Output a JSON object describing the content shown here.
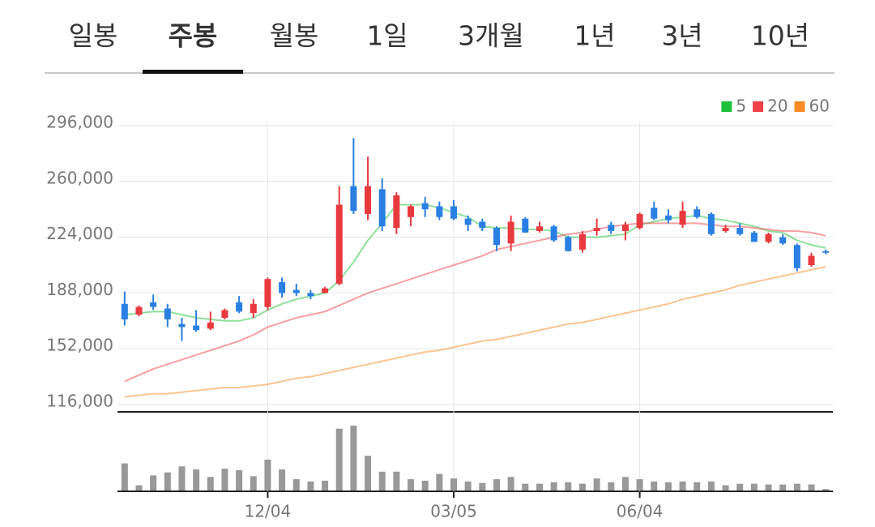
{
  "tabs": {
    "items": [
      "일봉",
      "주봉",
      "월봉",
      "1일",
      "3개월",
      "1년",
      "3년",
      "10년"
    ],
    "selected": "주봉"
  },
  "chart_data": [
    {
      "type": "candlestick",
      "categories": [
        null,
        null,
        null,
        null,
        null,
        null,
        null,
        null,
        null,
        null,
        "12/04",
        null,
        null,
        null,
        null,
        null,
        null,
        null,
        null,
        null,
        null,
        null,
        null,
        "03/05",
        null,
        null,
        null,
        null,
        null,
        null,
        null,
        null,
        null,
        null,
        null,
        null,
        "06/04",
        null,
        null,
        null,
        null,
        null,
        null,
        null,
        null,
        null,
        null,
        null,
        null,
        null
      ],
      "open": [
        181000,
        174000,
        182000,
        178000,
        168000,
        167000,
        165000,
        172000,
        182000,
        175000,
        179000,
        195000,
        190000,
        188000,
        188000,
        194000,
        257000,
        239000,
        255000,
        230000,
        237000,
        246000,
        244000,
        244000,
        236000,
        234000,
        230000,
        220000,
        236000,
        228000,
        231000,
        224000,
        216000,
        228000,
        232000,
        228000,
        230000,
        243000,
        238000,
        232000,
        242000,
        239000,
        228000,
        230000,
        227000,
        221000,
        224000,
        219000,
        206000,
        215000
      ],
      "high": [
        189000,
        180000,
        187000,
        181000,
        172000,
        177000,
        176000,
        178000,
        186000,
        184000,
        198000,
        198000,
        194000,
        190000,
        192000,
        257000,
        288000,
        276000,
        262000,
        253000,
        245000,
        250000,
        247000,
        248000,
        238000,
        236000,
        231000,
        238000,
        237000,
        234000,
        232000,
        225000,
        228000,
        236000,
        234000,
        234000,
        240000,
        247000,
        242000,
        247000,
        244000,
        240000,
        232000,
        233000,
        228000,
        227000,
        226000,
        220000,
        214000,
        216000
      ],
      "low": [
        167000,
        173000,
        177000,
        166000,
        157000,
        163000,
        164000,
        171000,
        175000,
        172000,
        177000,
        185000,
        186000,
        184000,
        188000,
        193000,
        239000,
        235000,
        228000,
        226000,
        231000,
        237000,
        235000,
        235000,
        228000,
        228000,
        215000,
        215000,
        227000,
        227000,
        221000,
        215000,
        214000,
        225000,
        226000,
        222000,
        229000,
        235000,
        233000,
        230000,
        236000,
        225000,
        227000,
        225000,
        221000,
        220000,
        219000,
        202000,
        205000,
        213000
      ],
      "close": [
        171000,
        179000,
        179000,
        171000,
        166000,
        164000,
        169000,
        177000,
        176000,
        181000,
        197000,
        188000,
        188000,
        186000,
        191000,
        245000,
        241000,
        257000,
        231000,
        251000,
        244000,
        242000,
        237000,
        236000,
        232000,
        230000,
        219000,
        234000,
        227000,
        231000,
        222000,
        215000,
        226000,
        230000,
        228000,
        232000,
        239000,
        236000,
        235000,
        241000,
        237000,
        226000,
        230000,
        226000,
        221000,
        226000,
        220000,
        204000,
        212000,
        214000
      ],
      "up_color": "#e8393f",
      "down_color": "#2a7fe3",
      "series": [
        {
          "name": "5",
          "color": "#1fc13a",
          "values": [
            174000,
            175000,
            176000,
            176000,
            174000,
            172000,
            171000,
            170000,
            170000,
            172000,
            177000,
            181000,
            184000,
            186000,
            188000,
            196000,
            208000,
            222000,
            233000,
            245000,
            245000,
            245000,
            243000,
            240000,
            237000,
            231000,
            230000,
            230000,
            229000,
            229000,
            228000,
            224000,
            224000,
            224000,
            225000,
            226000,
            232000,
            234000,
            236000,
            237000,
            238000,
            236000,
            235000,
            233000,
            231000,
            228000,
            227000,
            222000,
            219000,
            217000
          ]
        },
        {
          "name": "20",
          "color": "#f0414a",
          "values": [
            131000,
            135000,
            139000,
            142000,
            145000,
            148000,
            151000,
            154000,
            157000,
            161000,
            166000,
            169000,
            172000,
            174000,
            176000,
            180000,
            184000,
            188000,
            191000,
            194000,
            197000,
            200000,
            203000,
            206000,
            209000,
            212000,
            216000,
            218000,
            220000,
            222000,
            224000,
            226000,
            227000,
            229000,
            231000,
            232000,
            233000,
            233000,
            233000,
            233000,
            233000,
            232000,
            231000,
            231000,
            230000,
            229000,
            228000,
            228000,
            227000,
            225000
          ]
        },
        {
          "name": "60",
          "color": "#f78b25",
          "values": [
            121000,
            122000,
            123000,
            123000,
            124000,
            125000,
            126000,
            127000,
            127000,
            128000,
            129000,
            131000,
            133000,
            134000,
            136000,
            138000,
            140000,
            142000,
            144000,
            146000,
            148000,
            150000,
            151000,
            153000,
            155000,
            157000,
            158000,
            160000,
            162000,
            164000,
            166000,
            168000,
            169000,
            171000,
            173000,
            175000,
            177000,
            179000,
            181000,
            184000,
            186000,
            188000,
            190000,
            193000,
            195000,
            197000,
            199000,
            201000,
            203000,
            205000
          ]
        }
      ],
      "ylim": [
        116000,
        296000
      ],
      "yticks": [
        {
          "value": 116000,
          "label": "116,000"
        },
        {
          "value": 152000,
          "label": "152,000"
        },
        {
          "value": 188000,
          "label": "188,000"
        },
        {
          "value": 224000,
          "label": "224,000"
        },
        {
          "value": 260000,
          "label": "260,000"
        },
        {
          "value": 296000,
          "label": "296,000"
        }
      ],
      "grid": true
    },
    {
      "type": "bar",
      "color": "#999999",
      "ylim": [
        0,
        100
      ],
      "values": [
        36,
        7,
        20,
        24,
        32,
        28,
        18,
        29,
        27,
        19,
        41,
        28,
        15,
        12,
        13,
        82,
        86,
        46,
        25,
        25,
        15,
        13,
        22,
        16,
        12,
        10,
        15,
        18,
        9,
        9,
        11,
        11,
        9,
        16,
        11,
        18,
        15,
        12,
        11,
        12,
        11,
        12,
        7,
        9,
        9,
        8,
        8,
        9,
        8,
        2
      ]
    }
  ]
}
